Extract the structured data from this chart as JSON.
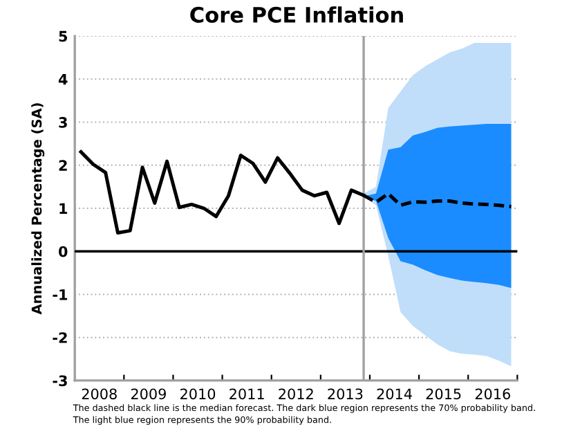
{
  "chart_data": {
    "type": "line",
    "title": "Core PCE Inflation",
    "ylabel": "Annualized Percentage (SA)",
    "annotations": [
      "The dashed black line is the median forecast. The dark blue region represents the 70% probability band.\nThe light blue region represents the 90% probability band."
    ],
    "series": [
      {
        "color": "#000000",
        "line_style": "solid",
        "x": [
          2008.125,
          2008.375,
          2008.625,
          2008.875,
          2009.125,
          2009.375,
          2009.625,
          2009.875,
          2010.125,
          2010.375,
          2010.625,
          2010.875,
          2011.125,
          2011.375,
          2011.625,
          2011.875,
          2012.125,
          2012.375,
          2012.625,
          2012.875,
          2013.125,
          2013.375,
          2013.625,
          2013.875
        ],
        "values": [
          2.31,
          2.02,
          1.83,
          0.43,
          0.48,
          1.95,
          1.12,
          2.09,
          1.02,
          1.09,
          1.0,
          0.81,
          1.29,
          2.23,
          2.04,
          1.61,
          2.17,
          1.81,
          1.42,
          1.29,
          1.37,
          0.65,
          1.42,
          1.3
        ]
      },
      {
        "color": "#c0defa",
        "x": [
          2013.875,
          2014.125,
          2014.375,
          2014.625,
          2014.875,
          2015.125,
          2015.375,
          2015.625,
          2015.875,
          2016.125,
          2016.375,
          2016.625,
          2016.875
        ],
        "values": [
          null,
          null,
          null,
          null,
          null,
          null,
          null,
          null,
          null,
          null,
          null,
          null,
          null
        ],
        "upper": [
          1.34,
          1.5,
          3.33,
          3.71,
          4.09,
          4.3,
          4.46,
          4.62,
          4.71,
          4.84,
          4.84,
          4.84,
          4.84
        ],
        "lower": [
          1.28,
          1.07,
          -0.11,
          -1.41,
          -1.73,
          -1.95,
          -2.16,
          -2.32,
          -2.38,
          -2.4,
          -2.43,
          -2.54,
          -2.67
        ]
      },
      {
        "color": "#1a8cff",
        "x": [
          2013.875,
          2014.125,
          2014.375,
          2014.625,
          2014.875,
          2015.125,
          2015.375,
          2015.625,
          2015.875,
          2016.125,
          2016.375,
          2016.625,
          2016.875
        ],
        "values": [
          null,
          null,
          null,
          null,
          null,
          null,
          null,
          null,
          null,
          null,
          null,
          null,
          null
        ],
        "lower": [
          1.28,
          1.17,
          0.31,
          -0.23,
          -0.31,
          -0.44,
          -0.55,
          -0.62,
          -0.68,
          -0.71,
          -0.74,
          -0.78,
          -0.85
        ],
        "upper": [
          1.28,
          1.34,
          2.36,
          2.42,
          2.69,
          2.77,
          2.87,
          2.9,
          2.92,
          2.94,
          2.96,
          2.96,
          2.96
        ]
      },
      {
        "color": "#000000",
        "line_style": "dashed",
        "x": [
          2013.875,
          2014.125,
          2014.375,
          2014.625,
          2014.875,
          2015.125,
          2015.375,
          2015.625,
          2015.875,
          2016.125,
          2016.375,
          2016.625,
          2016.875
        ],
        "values": [
          1.3,
          1.14,
          1.34,
          1.07,
          1.15,
          1.14,
          1.17,
          1.17,
          1.12,
          1.1,
          1.09,
          1.07,
          1.04
        ]
      }
    ],
    "xlim": [
      2008,
      2017
    ],
    "xticks": [
      {
        "value": 2008,
        "label": null
      },
      {
        "value": 2008.5,
        "label": "2008"
      },
      {
        "value": 2009,
        "label": null
      },
      {
        "value": 2009.5,
        "label": "2009"
      },
      {
        "value": 2010,
        "label": null
      },
      {
        "value": 2010.5,
        "label": "2010"
      },
      {
        "value": 2011,
        "label": null
      },
      {
        "value": 2011.5,
        "label": "2011"
      },
      {
        "value": 2012,
        "label": null
      },
      {
        "value": 2012.5,
        "label": "2012"
      },
      {
        "value": 2013,
        "label": null
      },
      {
        "value": 2013.5,
        "label": "2013"
      },
      {
        "value": 2014,
        "label": null
      },
      {
        "value": 2014.5,
        "label": "2014"
      },
      {
        "value": 2015,
        "label": null
      },
      {
        "value": 2015.5,
        "label": "2015"
      },
      {
        "value": 2016,
        "label": null
      },
      {
        "value": 2016.5,
        "label": "2016"
      },
      {
        "value": 2017,
        "label": null
      }
    ],
    "ylim": [
      -3,
      5
    ],
    "yticks": [
      -3,
      -2,
      -1,
      0,
      1,
      2,
      3,
      4,
      5
    ],
    "grid": "y",
    "legend": false,
    "marker": "none",
    "ref_lines": [
      {
        "axis": "y",
        "value": 0,
        "color": "#000000"
      },
      {
        "axis": "x",
        "value": 2013.875,
        "color": "#a0a0a0"
      }
    ]
  }
}
